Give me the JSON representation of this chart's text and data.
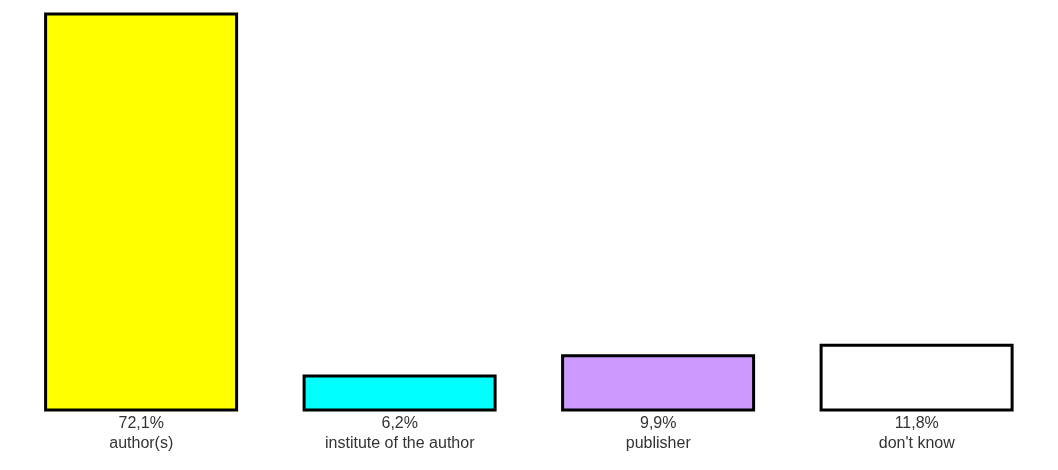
{
  "chart_data": {
    "type": "bar",
    "categories": [
      "author(s)",
      "institute of the author",
      "publisher",
      "don't know"
    ],
    "values": [
      72.1,
      6.2,
      9.9,
      11.8
    ],
    "value_labels": [
      "72,1%",
      "6,2%",
      "9,9%",
      "11,8%"
    ],
    "colors": [
      "#ffff00",
      "#00ffff",
      "#cc99ff",
      "#ffffff"
    ],
    "grid": false,
    "legend": false
  }
}
